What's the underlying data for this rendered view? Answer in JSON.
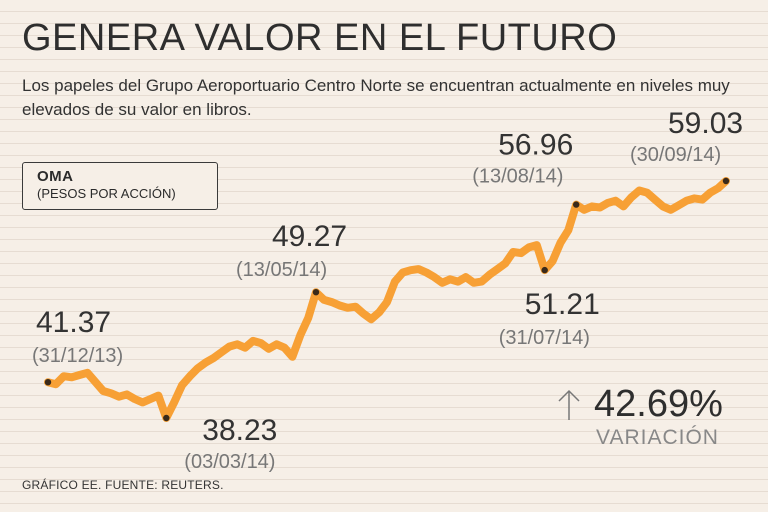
{
  "header": {
    "title": "GENERA VALOR EN EL FUTURO",
    "subtitle": "Los papeles del Grupo Aeroportuario Centro Norte se encuentran actualmente en niveles muy elevados de su valor en libros."
  },
  "legend": {
    "name": "OMA",
    "unit": "(PESOS POR ACCIÓN)"
  },
  "variation": {
    "value": "42.69%",
    "label": "VARIACIÓN"
  },
  "footer": {
    "source": "GRÁFICO EE. FUENTE: REUTERS."
  },
  "colors": {
    "line": "#f7a035",
    "marker": "#3a2a1a",
    "background": "#f6efe7"
  },
  "chart_data": {
    "type": "line",
    "title": "GENERA VALOR EN EL FUTURO",
    "xlabel": "",
    "ylabel": "(PESOS POR ACCIÓN)",
    "series": [
      {
        "name": "OMA",
        "x_range": [
          "31/12/13",
          "30/09/14"
        ],
        "values": [
          41.37,
          41.2,
          41.9,
          41.8,
          42.0,
          42.2,
          41.4,
          40.6,
          40.4,
          40.1,
          40.3,
          39.9,
          39.6,
          39.9,
          40.2,
          38.23,
          39.6,
          41.1,
          41.9,
          42.6,
          43.1,
          43.5,
          44.0,
          44.5,
          44.7,
          44.4,
          45.0,
          44.8,
          44.3,
          44.7,
          44.4,
          43.6,
          45.5,
          47.0,
          49.27,
          48.6,
          48.4,
          48.1,
          47.9,
          48.0,
          47.4,
          46.9,
          47.5,
          48.4,
          50.2,
          51.0,
          51.2,
          51.3,
          51.0,
          50.6,
          50.1,
          50.4,
          50.2,
          50.6,
          50.1,
          50.2,
          50.8,
          51.3,
          51.8,
          52.8,
          52.7,
          53.2,
          53.4,
          51.21,
          52.0,
          53.6,
          54.7,
          56.96,
          56.5,
          56.8,
          56.7,
          57.1,
          57.3,
          56.8,
          57.6,
          58.2,
          58.0,
          57.4,
          56.8,
          56.5,
          56.9,
          57.3,
          57.5,
          57.4,
          58.0,
          58.4,
          59.03
        ],
        "labeled_points": [
          {
            "index": 0,
            "value": "41.37",
            "date": "(31/12/13)"
          },
          {
            "index": 15,
            "value": "38.23",
            "date": "(03/03/14)"
          },
          {
            "index": 34,
            "value": "49.27",
            "date": "(13/05/14)"
          },
          {
            "index": 63,
            "value": "51.21",
            "date": "(31/07/14)"
          },
          {
            "index": 67,
            "value": "56.96",
            "date": "(13/08/14)"
          },
          {
            "index": 86,
            "value": "59.03",
            "date": "(30/09/14)"
          }
        ]
      }
    ],
    "grid": true,
    "legend": "top-left"
  }
}
